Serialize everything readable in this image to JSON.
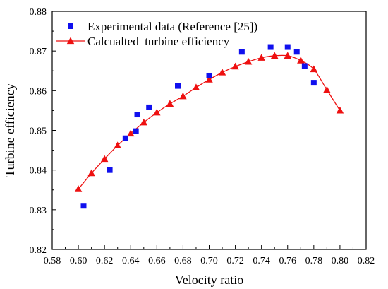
{
  "chart_data": {
    "type": "scatter",
    "xlabel": "Velocity ratio",
    "ylabel": "Turbine efficiency",
    "xlim": [
      0.58,
      0.82
    ],
    "ylim": [
      0.82,
      0.88
    ],
    "xticks": [
      "0.58",
      "0.60",
      "0.62",
      "0.64",
      "0.66",
      "0.68",
      "0.70",
      "0.72",
      "0.74",
      "0.76",
      "0.78",
      "0.80",
      "0.82"
    ],
    "yticks": [
      "0.82",
      "0.83",
      "0.84",
      "0.85",
      "0.86",
      "0.87",
      "0.88"
    ],
    "grid": false,
    "legend_position": "top-left",
    "series": [
      {
        "name": "Experimental data (Reference [25])",
        "marker": "square",
        "color": "#1010ee",
        "x": [
          0.604,
          0.624,
          0.636,
          0.644,
          0.645,
          0.654,
          0.676,
          0.7,
          0.725,
          0.747,
          0.76,
          0.767,
          0.773,
          0.78
        ],
        "y": [
          0.831,
          0.84,
          0.848,
          0.8498,
          0.854,
          0.8558,
          0.8612,
          0.8638,
          0.8698,
          0.871,
          0.871,
          0.8698,
          0.8662,
          0.862
        ]
      },
      {
        "name": "Calcualted  turbine efficiency",
        "marker": "triangle",
        "color": "#ee1010",
        "line": true,
        "x": [
          0.6,
          0.61,
          0.62,
          0.63,
          0.64,
          0.65,
          0.66,
          0.67,
          0.68,
          0.69,
          0.7,
          0.71,
          0.72,
          0.73,
          0.74,
          0.75,
          0.76,
          0.77,
          0.78,
          0.79,
          0.8
        ],
        "y": [
          0.8352,
          0.8392,
          0.8428,
          0.8462,
          0.8492,
          0.852,
          0.8545,
          0.8567,
          0.8586,
          0.8608,
          0.8628,
          0.8646,
          0.8661,
          0.8673,
          0.8683,
          0.8688,
          0.8688,
          0.8676,
          0.8654,
          0.8602,
          0.855
        ]
      }
    ]
  }
}
